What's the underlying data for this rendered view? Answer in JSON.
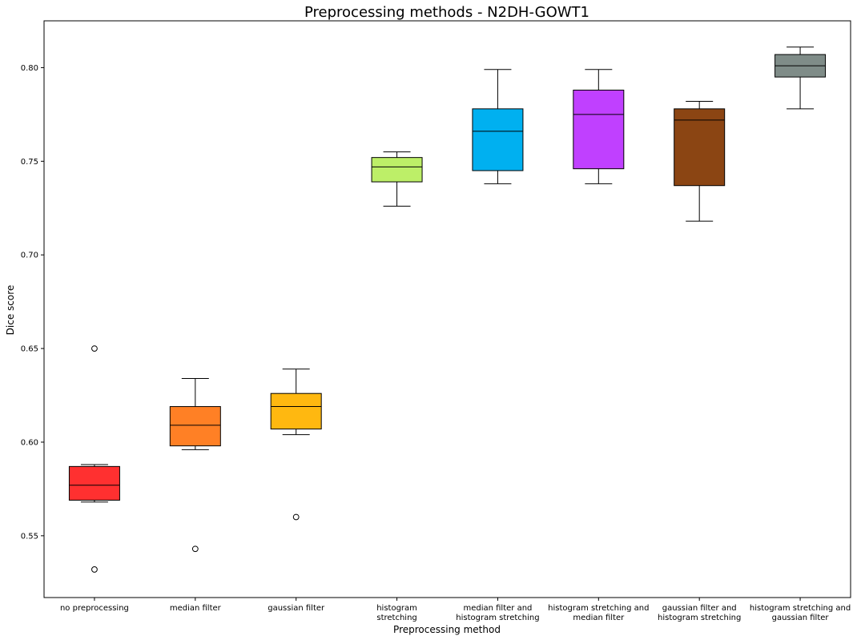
{
  "chart_data": {
    "type": "box",
    "title": "Preprocessing methods - N2DH-GOWT1",
    "xlabel": "Preprocessing method",
    "ylabel": "Dice score",
    "ylim": [
      0.517,
      0.825
    ],
    "yticks": [
      0.55,
      0.6,
      0.65,
      0.7,
      0.75,
      0.8
    ],
    "ytick_labels": [
      "0.55",
      "0.60",
      "0.65",
      "0.70",
      "0.75",
      "0.80"
    ],
    "grid": false,
    "categories": [
      [
        "no preprocessing"
      ],
      [
        "median filter"
      ],
      [
        "gaussian filter"
      ],
      [
        "histogram",
        "stretching"
      ],
      [
        "median filter and",
        "histogram stretching"
      ],
      [
        "histogram stretching and",
        "median filter"
      ],
      [
        "gaussian filter and",
        "histogram stretching"
      ],
      [
        "histogram stretching and",
        "gaussian filter"
      ]
    ],
    "boxes": [
      {
        "whisker_low": 0.568,
        "q1": 0.569,
        "median": 0.577,
        "q3": 0.587,
        "whisker_high": 0.588,
        "outliers": [
          0.532,
          0.65
        ],
        "color": "#ff3030"
      },
      {
        "whisker_low": 0.596,
        "q1": 0.598,
        "median": 0.609,
        "q3": 0.619,
        "whisker_high": 0.634,
        "outliers": [
          0.543
        ],
        "color": "#ff8025"
      },
      {
        "whisker_low": 0.604,
        "q1": 0.607,
        "median": 0.619,
        "q3": 0.626,
        "whisker_high": 0.639,
        "outliers": [
          0.56
        ],
        "color": "#ffb810"
      },
      {
        "whisker_low": 0.726,
        "q1": 0.739,
        "median": 0.747,
        "q3": 0.752,
        "whisker_high": 0.755,
        "outliers": [],
        "color": "#bdef68"
      },
      {
        "whisker_low": 0.738,
        "q1": 0.745,
        "median": 0.766,
        "q3": 0.778,
        "whisker_high": 0.799,
        "outliers": [],
        "color": "#00b0f0"
      },
      {
        "whisker_low": 0.738,
        "q1": 0.746,
        "median": 0.775,
        "q3": 0.788,
        "whisker_high": 0.799,
        "outliers": [],
        "color": "#c040ff"
      },
      {
        "whisker_low": 0.718,
        "q1": 0.737,
        "median": 0.772,
        "q3": 0.778,
        "whisker_high": 0.782,
        "outliers": [],
        "color": "#8b4513"
      },
      {
        "whisker_low": 0.778,
        "q1": 0.795,
        "median": 0.801,
        "q3": 0.807,
        "whisker_high": 0.811,
        "outliers": [],
        "color": "#7f8c88"
      }
    ]
  }
}
